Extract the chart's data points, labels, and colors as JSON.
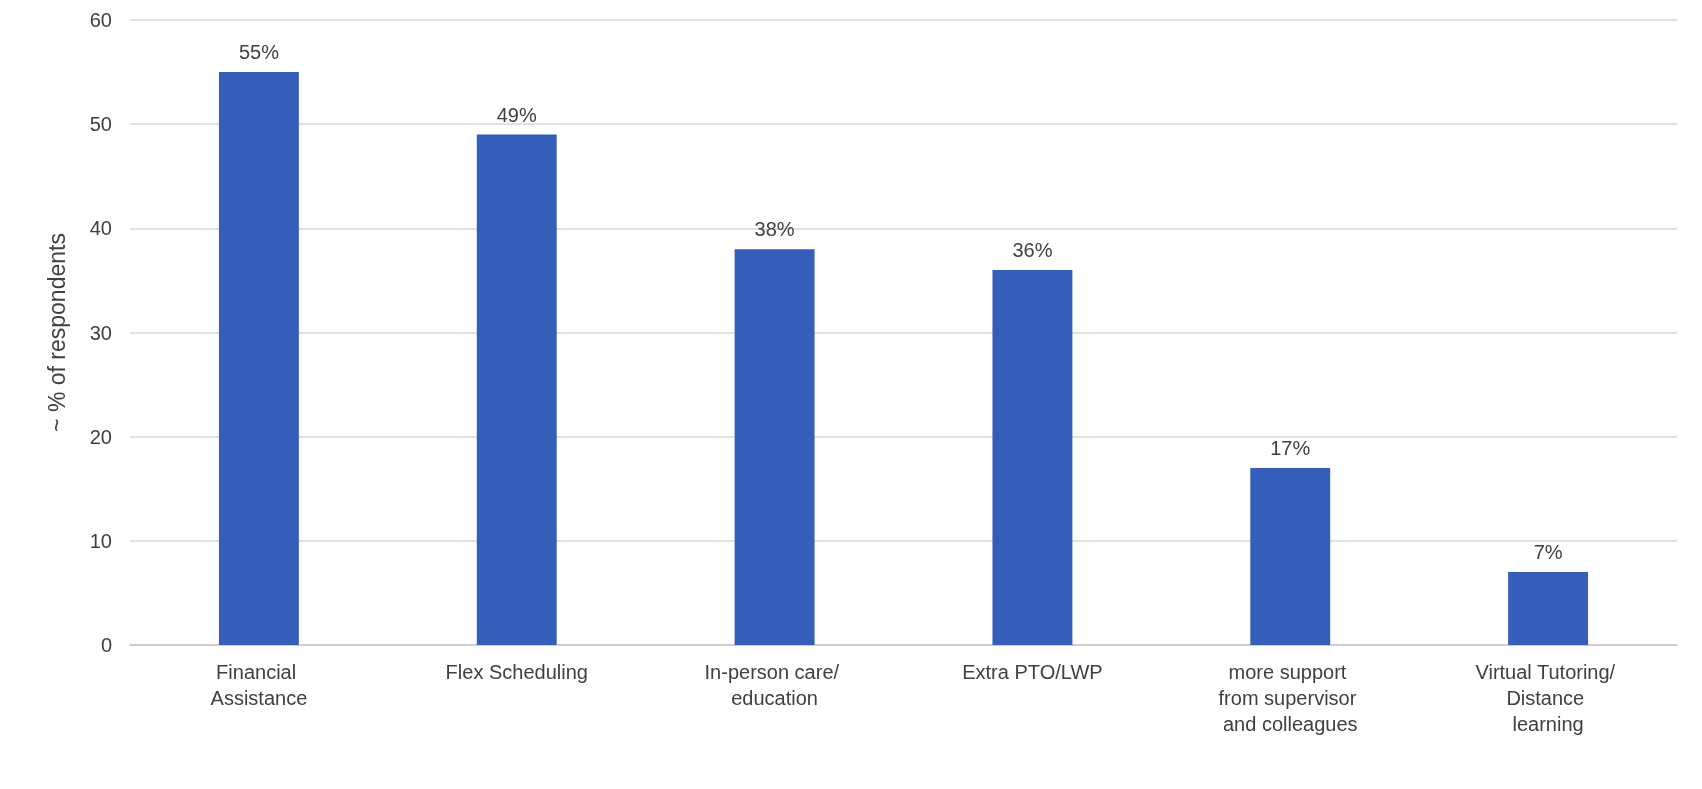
{
  "chart_data": {
    "type": "bar",
    "ylabel": "~ % of respondents",
    "categories": [
      "Financial Assistance",
      "Flex Scheduling",
      "In-person care/ education",
      "Extra PTO/LWP",
      "more support from supervisor and colleagues",
      "Virtual Tutoring/ Distance learning"
    ],
    "values": [
      55,
      49,
      38,
      36,
      17,
      7
    ],
    "value_labels": [
      "55%",
      "49%",
      "38%",
      "36%",
      "17%",
      "7%"
    ],
    "color": "#355ebb",
    "ylim": [
      0,
      60
    ],
    "yticks": [
      0,
      10,
      20,
      30,
      40,
      50,
      60
    ],
    "grid": "y"
  }
}
